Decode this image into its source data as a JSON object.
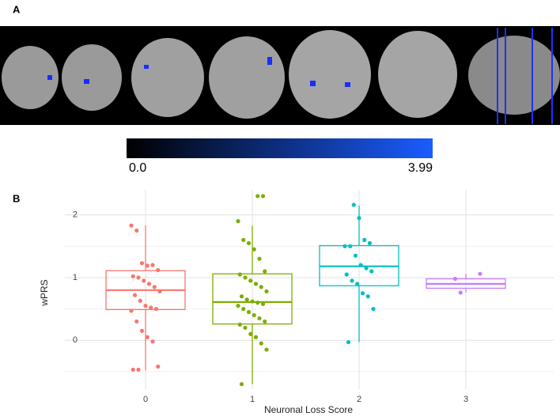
{
  "panels": {
    "a": "A",
    "b": "B"
  },
  "colorbar": {
    "range": [
      0,
      3.99
    ],
    "ticks": [
      {
        "value": 0,
        "label": "0.0"
      },
      3.99
    ]
  },
  "chart_data": {
    "type": "box",
    "x_label": "Neuronal Loss Score",
    "y_label": "wPRS",
    "categories": [
      "0",
      "1",
      "2",
      "3"
    ],
    "colors": [
      "#f8766d",
      "#7cae00",
      "#00bfc4",
      "#c77cff"
    ],
    "boxes": [
      {
        "low": -0.48,
        "q1": 0.49,
        "median": 0.8,
        "q3": 1.11,
        "high": 1.83,
        "points": [
          1.83,
          1.75,
          1.23,
          1.19,
          1.2,
          1.12,
          1.02,
          1.0,
          0.95,
          0.9,
          0.85,
          0.78,
          0.72,
          0.63,
          0.55,
          0.52,
          0.5,
          0.47,
          0.3,
          0.15,
          0.05,
          -0.02,
          -0.42,
          -0.47,
          -0.47
        ]
      },
      {
        "low": -0.7,
        "q1": 0.26,
        "median": 0.61,
        "q3": 1.06,
        "high": 1.83,
        "points": [
          2.3,
          2.3,
          1.9,
          1.6,
          1.55,
          1.45,
          1.3,
          1.1,
          1.05,
          1.0,
          0.95,
          0.9,
          0.85,
          0.78,
          0.7,
          0.65,
          0.62,
          0.6,
          0.58,
          0.55,
          0.5,
          0.45,
          0.4,
          0.35,
          0.3,
          0.25,
          0.2,
          0.1,
          0.05,
          -0.05,
          -0.15,
          -0.7
        ]
      },
      {
        "low": -0.03,
        "q1": 0.87,
        "median": 1.18,
        "q3": 1.51,
        "high": 2.15,
        "points": [
          2.16,
          1.95,
          1.6,
          1.55,
          1.5,
          1.5,
          1.35,
          1.2,
          1.15,
          1.1,
          1.05,
          0.95,
          0.9,
          0.75,
          0.7,
          0.5,
          -0.03
        ]
      },
      {
        "low": 0.76,
        "q1": 0.83,
        "median": 0.9,
        "q3": 0.98,
        "high": 1.06,
        "points": [
          1.06,
          0.98,
          0.76
        ]
      }
    ],
    "ylim": [
      -0.78,
      2.4
    ],
    "yticks": [
      0,
      1,
      2
    ],
    "yminor": [
      -0.5,
      0.5,
      1.5
    ],
    "grid": true
  }
}
